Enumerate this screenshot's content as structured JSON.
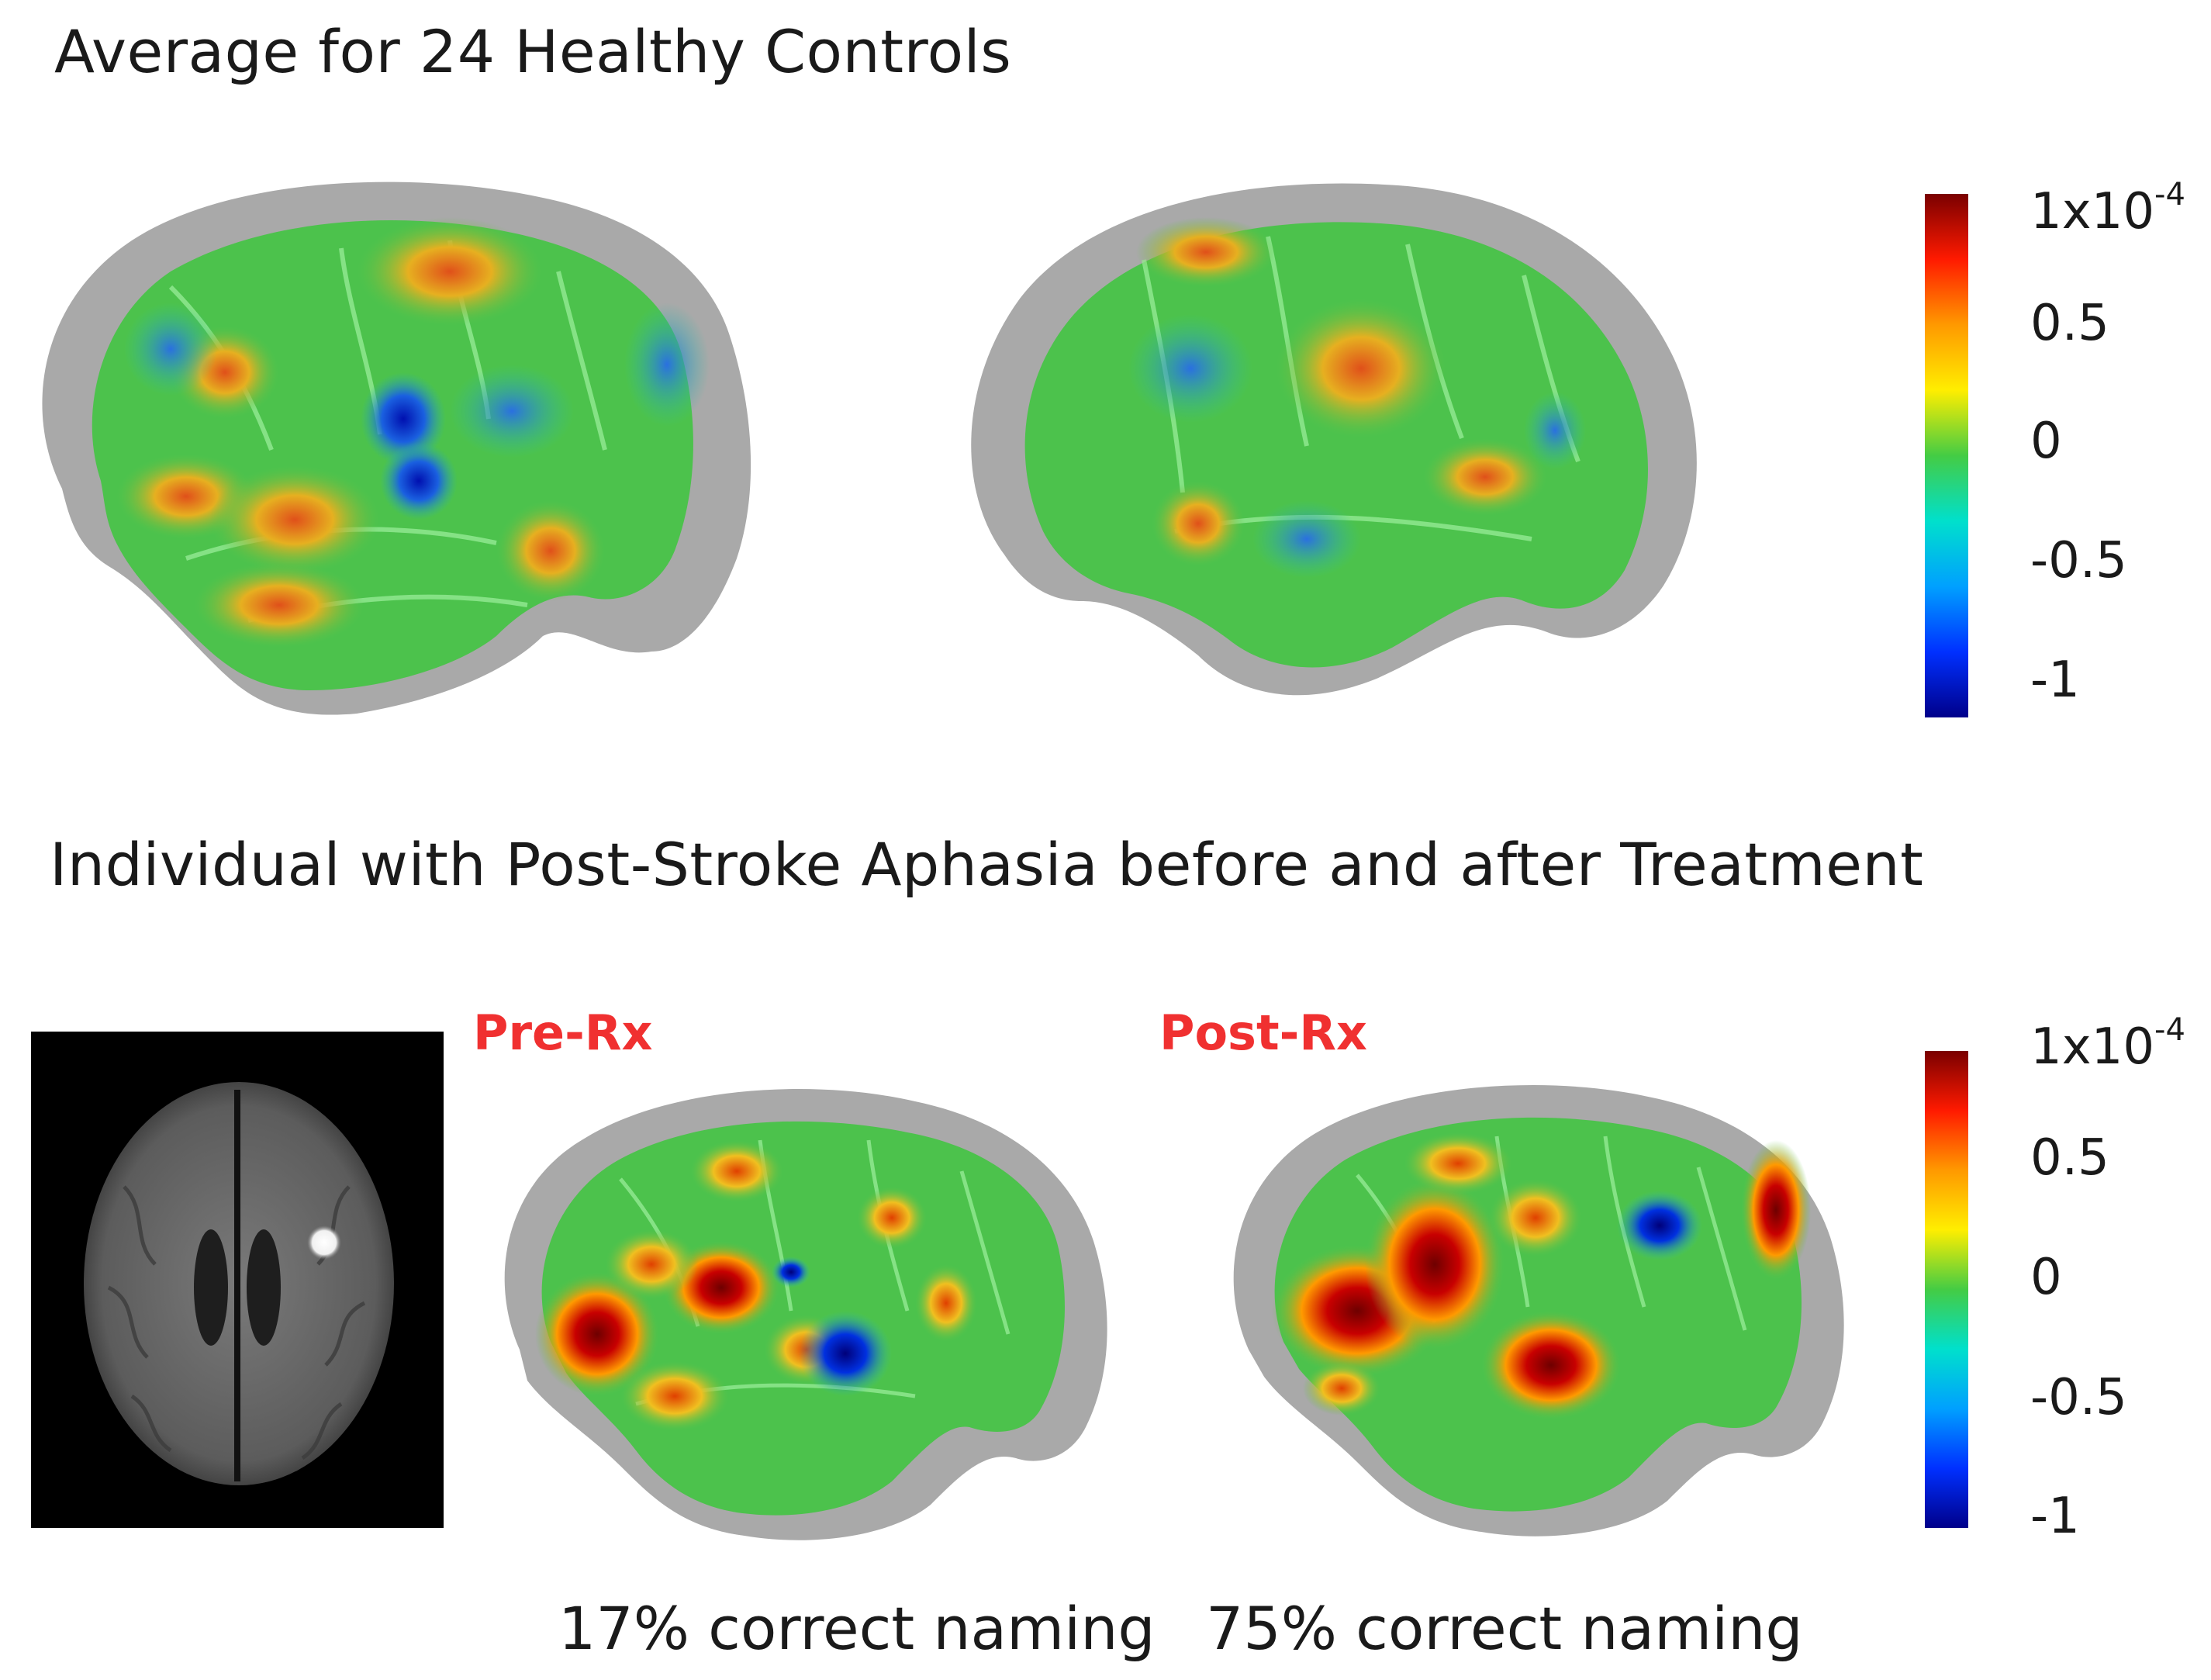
{
  "figure": {
    "top_heading": "Average for 24 Healthy Controls",
    "bottom_heading": "Individual with Post-Stroke Aphasia before and after Treatment",
    "pre_label": "Pre-Rx",
    "post_label": "Post-Rx",
    "pre_caption": "17% correct naming",
    "post_caption": "75% correct naming",
    "label_color": "#f03030"
  },
  "colorbar": {
    "top_base": "1x10",
    "top_exp": "-4",
    "ticks": [
      "0.5",
      "0",
      "-0.5",
      "-1"
    ],
    "colors": [
      "#7a0000",
      "#ff1a00",
      "#ff9900",
      "#ffee00",
      "#44cc44",
      "#00e0cc",
      "#00a0ff",
      "#0030ff",
      "#00008a"
    ]
  },
  "icons": {
    "brain_left_lateral": "brain-left-lateral-icon",
    "brain_right_lateral": "brain-right-lateral-icon",
    "mri_axial": "mri-axial-slice-icon"
  }
}
